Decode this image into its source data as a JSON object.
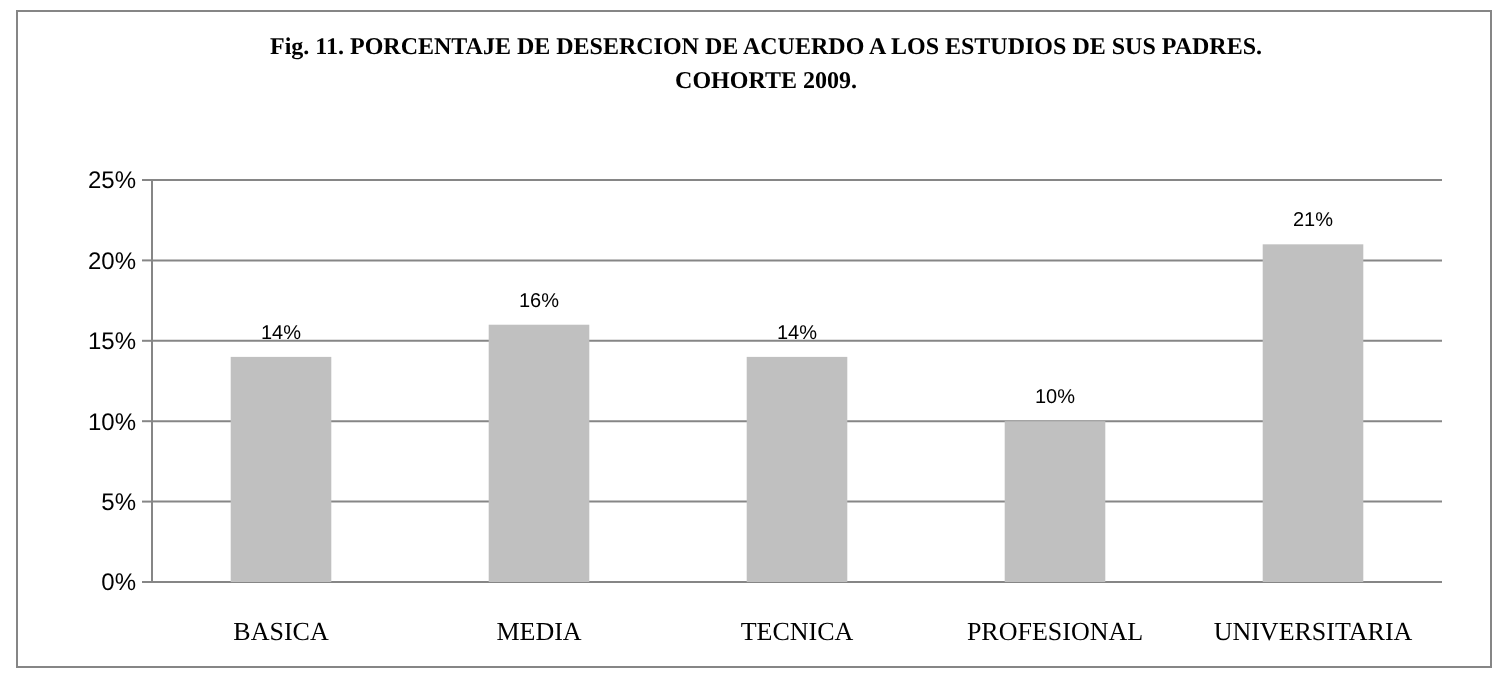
{
  "chart_data": {
    "type": "bar",
    "title": "Fig. 11. PORCENTAJE DE DESERCION DE ACUERDO A LOS ESTUDIOS DE SUS PADRES.\nCOHORTE 2009.",
    "categories": [
      "BASICA",
      "MEDIA",
      "TECNICA",
      "PROFESIONAL",
      "UNIVERSITARIA"
    ],
    "values": [
      14,
      16,
      14,
      10,
      21
    ],
    "value_labels": [
      "14%",
      "16%",
      "14%",
      "10%",
      "21%"
    ],
    "color": "#c0c0c0",
    "ylim": [
      0,
      25
    ],
    "yticks": [
      {
        "value": 0,
        "label": "0%"
      },
      {
        "value": 5,
        "label": "5%"
      },
      {
        "value": 10,
        "label": "10%"
      },
      {
        "value": 15,
        "label": "15%"
      },
      {
        "value": 20,
        "label": "20%"
      },
      {
        "value": 25,
        "label": "25%"
      }
    ],
    "grid": "y"
  }
}
